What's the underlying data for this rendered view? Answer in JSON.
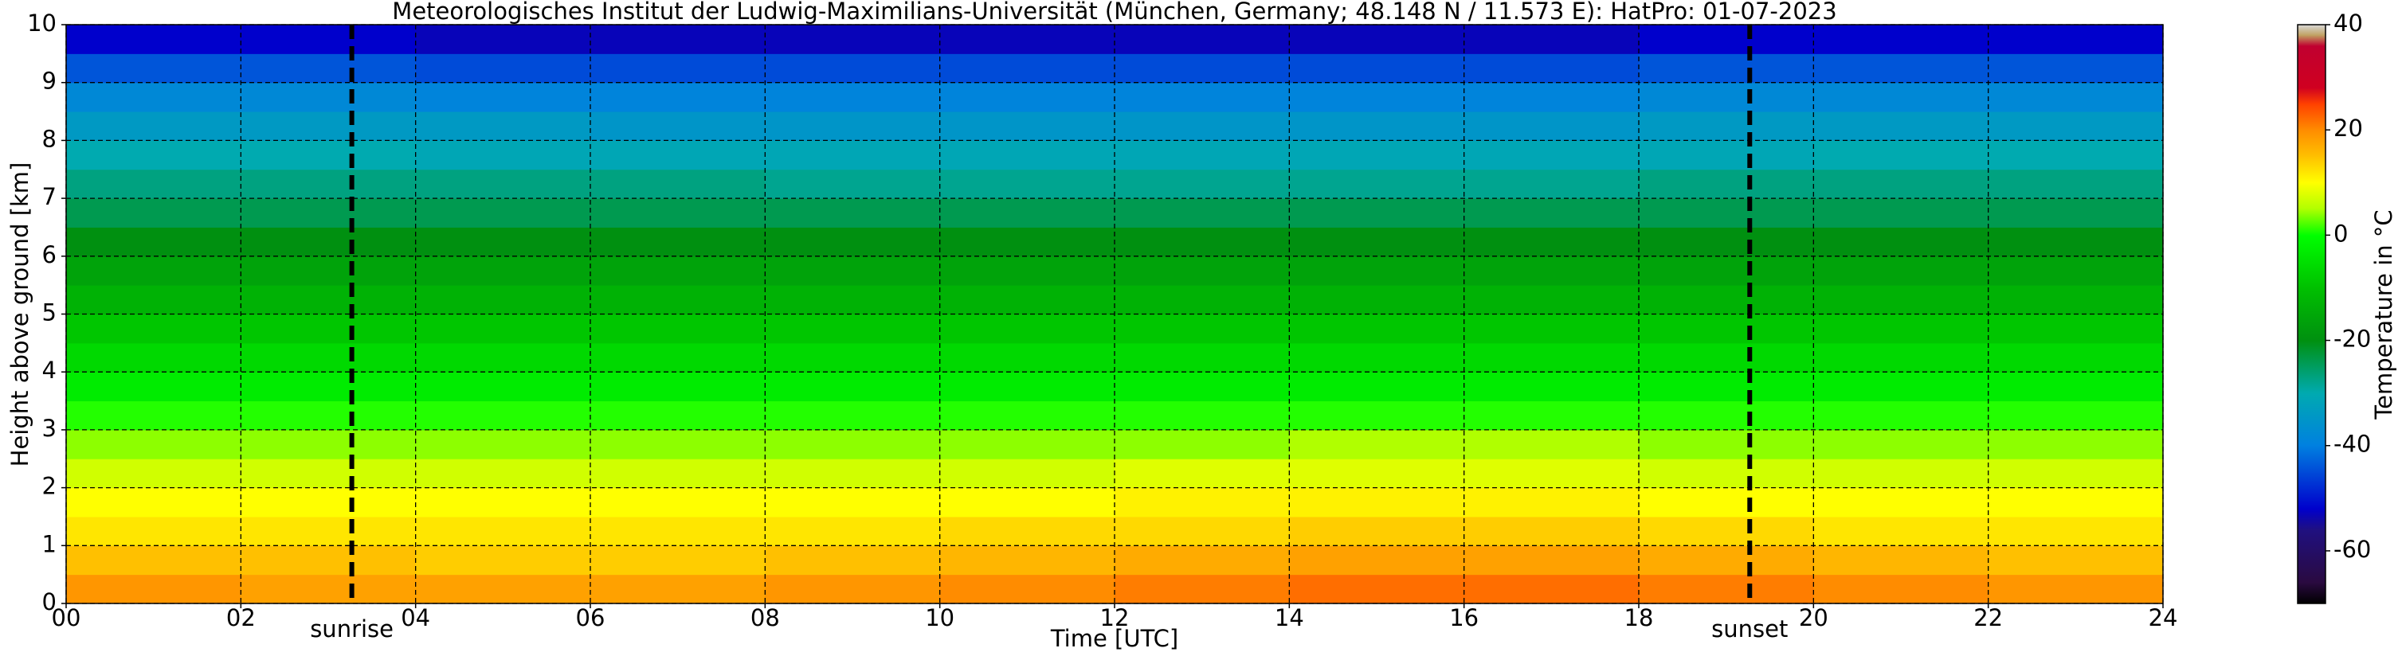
{
  "chart_data": {
    "type": "heatmap",
    "title": "Meteorologisches Institut der Ludwig-Maximilians-Universität (München, Germany; 48.148 N / 11.573 E):    HatPro: 01-07-2023",
    "x_label": "Time [UTC]",
    "y_label": "Height above ground [km]",
    "colorbar_label": "Temperature in °C",
    "xbins": [
      0,
      2,
      4,
      6,
      8,
      10,
      12,
      14,
      16,
      18,
      20,
      22,
      24
    ],
    "ybins": [
      0,
      0.5,
      1,
      1.5,
      2,
      2.5,
      3,
      3.5,
      4,
      4.5,
      5,
      5.5,
      6,
      6.5,
      7,
      7.5,
      8,
      8.5,
      9,
      9.5,
      10
    ],
    "values": [
      [
        19,
        18,
        18,
        18,
        19,
        20,
        21,
        22,
        22,
        21,
        20,
        19
      ],
      [
        15,
        15,
        14,
        14,
        15,
        16,
        17,
        18,
        18,
        17,
        16,
        15
      ],
      [
        12,
        12,
        12,
        12,
        12,
        13,
        13,
        14,
        14,
        13,
        12,
        12
      ],
      [
        10,
        10,
        10,
        10,
        10,
        10,
        11,
        11,
        11,
        10,
        10,
        10
      ],
      [
        7,
        7,
        7,
        7,
        7,
        7,
        8,
        8,
        8,
        7,
        7,
        7
      ],
      [
        4,
        4,
        4,
        4,
        4,
        4,
        4,
        5,
        5,
        4,
        4,
        4
      ],
      [
        1,
        1,
        1,
        1,
        1,
        1,
        1,
        1,
        1,
        1,
        1,
        1
      ],
      [
        -3,
        -3,
        -3,
        -3,
        -3,
        -3,
        -3,
        -3,
        -3,
        -3,
        -3,
        -3
      ],
      [
        -6,
        -6,
        -6,
        -6,
        -6,
        -6,
        -6,
        -6,
        -6,
        -6,
        -6,
        -6
      ],
      [
        -9,
        -9,
        -9,
        -9,
        -9,
        -9,
        -9,
        -9,
        -9,
        -9,
        -9,
        -9
      ],
      [
        -13,
        -13,
        -13,
        -13,
        -13,
        -13,
        -13,
        -13,
        -13,
        -13,
        -13,
        -13
      ],
      [
        -16,
        -16,
        -16,
        -16,
        -16,
        -16,
        -16,
        -16,
        -16,
        -16,
        -16,
        -16
      ],
      [
        -20,
        -20,
        -20,
        -20,
        -20,
        -20,
        -20,
        -20,
        -20,
        -20,
        -20,
        -20
      ],
      [
        -24,
        -24,
        -24,
        -24,
        -24,
        -24,
        -24,
        -24,
        -24,
        -24,
        -24,
        -24
      ],
      [
        -27,
        -27,
        -27,
        -27,
        -28,
        -28,
        -28,
        -28,
        -28,
        -27,
        -27,
        -27
      ],
      [
        -30,
        -30,
        -31,
        -31,
        -31,
        -31,
        -31,
        -31,
        -31,
        -31,
        -30,
        -30
      ],
      [
        -34,
        -34,
        -34,
        -35,
        -35,
        -35,
        -35,
        -35,
        -35,
        -34,
        -34,
        -34
      ],
      [
        -38,
        -38,
        -39,
        -39,
        -39,
        -39,
        -39,
        -39,
        -39,
        -38,
        -38,
        -38
      ],
      [
        -44,
        -44,
        -45,
        -45,
        -45,
        -45,
        -45,
        -45,
        -45,
        -44,
        -44,
        -44
      ],
      [
        -52,
        -52,
        -53,
        -53,
        -53,
        -53,
        -53,
        -53,
        -53,
        -52,
        -52,
        -52
      ]
    ],
    "xlim": [
      0,
      24
    ],
    "ylim": [
      0,
      10
    ],
    "xticks": [
      {
        "value": 0,
        "label": "00"
      },
      {
        "value": 2,
        "label": "02"
      },
      {
        "value": 4,
        "label": "04"
      },
      {
        "value": 6,
        "label": "06"
      },
      {
        "value": 8,
        "label": "08"
      },
      {
        "value": 10,
        "label": "10"
      },
      {
        "value": 12,
        "label": "12"
      },
      {
        "value": 14,
        "label": "14"
      },
      {
        "value": 16,
        "label": "16"
      },
      {
        "value": 18,
        "label": "18"
      },
      {
        "value": 20,
        "label": "20"
      },
      {
        "value": 22,
        "label": "22"
      },
      {
        "value": 24,
        "label": "24"
      }
    ],
    "yticks": [
      0,
      1,
      2,
      3,
      4,
      5,
      6,
      7,
      8,
      9,
      10
    ],
    "clim": [
      -70,
      40
    ],
    "cticks": [
      -60,
      -40,
      -20,
      0,
      20,
      40
    ],
    "colorscale": [
      {
        "value": -70,
        "color": "#000000"
      },
      {
        "value": -66,
        "color": "#2a0a40"
      },
      {
        "value": -56,
        "color": "#201080"
      },
      {
        "value": -52,
        "color": "#0000cc"
      },
      {
        "value": -40,
        "color": "#0080e0"
      },
      {
        "value": -30,
        "color": "#00aab0"
      },
      {
        "value": -20,
        "color": "#009010"
      },
      {
        "value": -10,
        "color": "#00c000"
      },
      {
        "value": 0,
        "color": "#00ff00"
      },
      {
        "value": 5,
        "color": "#b0ff00"
      },
      {
        "value": 10,
        "color": "#ffff00"
      },
      {
        "value": 15,
        "color": "#ffc000"
      },
      {
        "value": 20,
        "color": "#ff8c00"
      },
      {
        "value": 25,
        "color": "#ff4000"
      },
      {
        "value": 28,
        "color": "#d00020"
      },
      {
        "value": 36,
        "color": "#c00030"
      },
      {
        "value": 38,
        "color": "#c0a060"
      },
      {
        "value": 40,
        "color": "#d8d8d8"
      }
    ],
    "grid": true,
    "annotations": [
      {
        "text": "sunrise",
        "x": 3.27
      },
      {
        "text": "sunset",
        "x": 19.27
      }
    ]
  }
}
